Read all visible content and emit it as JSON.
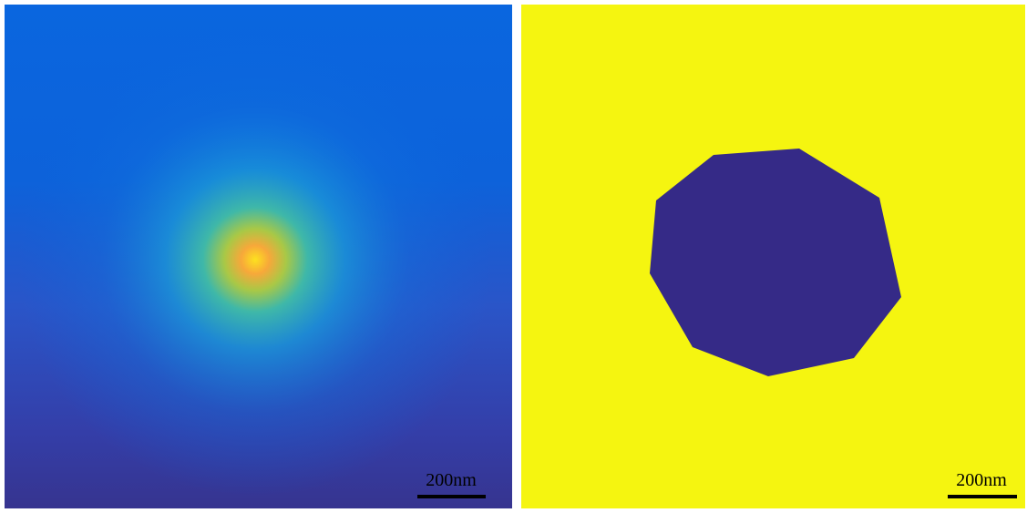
{
  "panels": [
    {
      "scale_bar": "200nm"
    },
    {
      "scale_bar": "200nm"
    }
  ]
}
